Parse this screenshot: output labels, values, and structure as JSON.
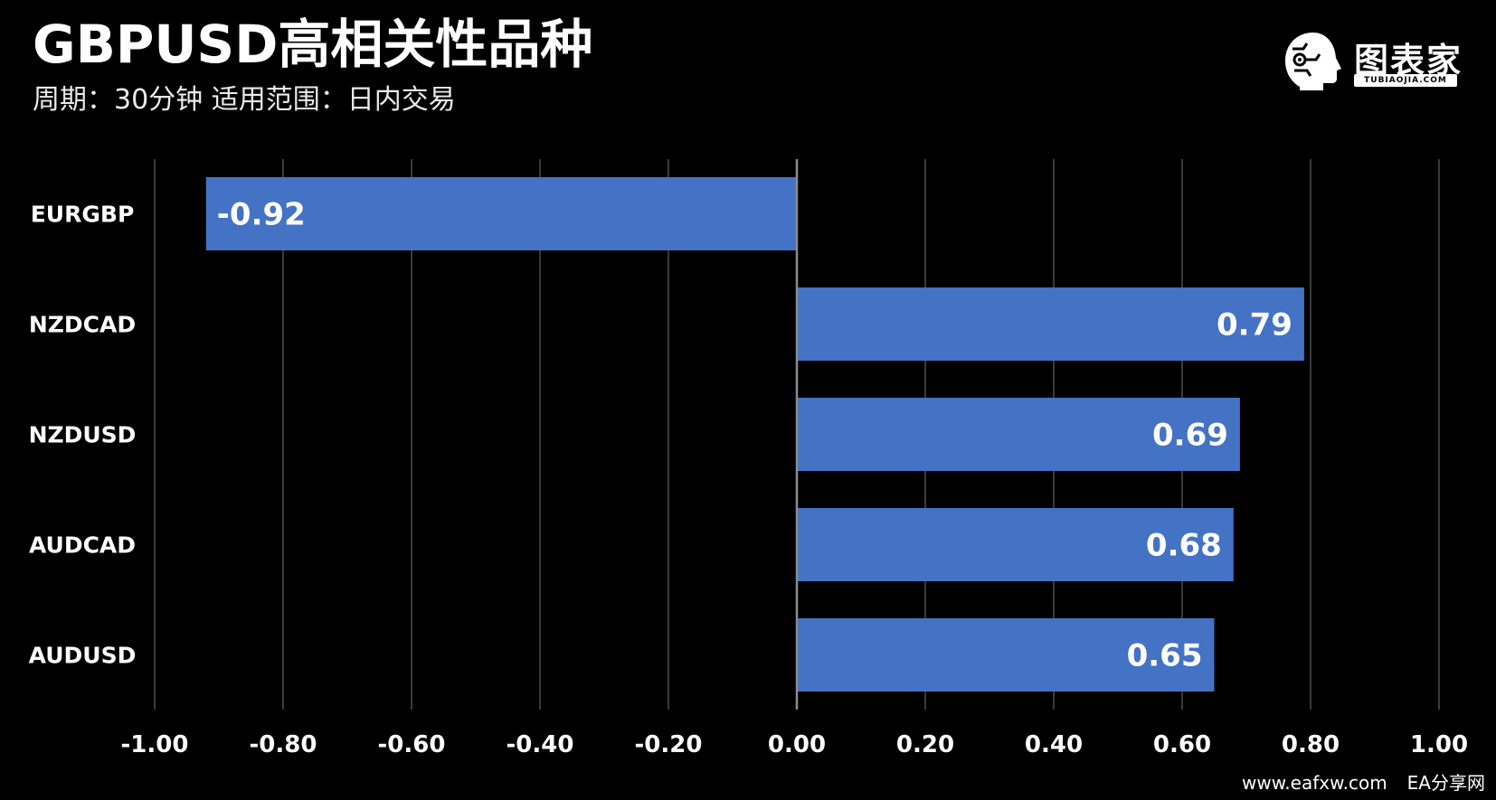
{
  "header": {
    "title": "GBPUSD高相关性品种",
    "subtitle": "周期：30分钟  适用范围：日内交易"
  },
  "logo": {
    "name": "图表家",
    "url_text": "TUBIAOJIA.COM",
    "icon": "robot-head-icon"
  },
  "footer": {
    "site": "www.eafxw.com",
    "name": "EA分享网"
  },
  "colors": {
    "background": "#000000",
    "bar": "#4472C4",
    "grid": "#4d4d4d",
    "axis": "#8c8c8c",
    "text": "#ffffff"
  },
  "chart_data": {
    "type": "bar",
    "orientation": "horizontal",
    "categories": [
      "EURGBP",
      "NZDCAD",
      "NZDUSD",
      "AUDCAD",
      "AUDUSD"
    ],
    "values": [
      -0.92,
      0.79,
      0.69,
      0.68,
      0.65
    ],
    "data_labels": [
      "-0.92",
      "0.79",
      "0.69",
      "0.68",
      "0.65"
    ],
    "xlim": [
      -1.0,
      1.0
    ],
    "xticks": [
      -1.0,
      -0.8,
      -0.6,
      -0.4,
      -0.2,
      0.0,
      0.2,
      0.4,
      0.6,
      0.8,
      1.0
    ],
    "xtick_labels": [
      "-1.00",
      "-0.80",
      "-0.60",
      "-0.40",
      "-0.20",
      "0.00",
      "0.20",
      "0.40",
      "0.60",
      "0.80",
      "1.00"
    ],
    "grid": "vertical",
    "legend": "none",
    "title": "GBPUSD高相关性品种",
    "xlabel": "",
    "ylabel": ""
  }
}
